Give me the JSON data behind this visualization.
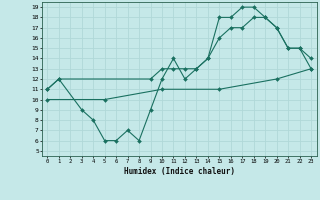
{
  "xlabel": "Humidex (Indice chaleur)",
  "xlim": [
    -0.5,
    23.5
  ],
  "ylim": [
    4.5,
    19.5
  ],
  "yticks": [
    5,
    6,
    7,
    8,
    9,
    10,
    11,
    12,
    13,
    14,
    15,
    16,
    17,
    18,
    19
  ],
  "xticks": [
    0,
    1,
    2,
    3,
    4,
    5,
    6,
    7,
    8,
    9,
    10,
    11,
    12,
    13,
    14,
    15,
    16,
    17,
    18,
    19,
    20,
    21,
    22,
    23
  ],
  "line_color": "#1a7060",
  "bg_color": "#c5e8e8",
  "grid_color": "#b0d8d8",
  "line1_x": [
    0,
    1,
    3,
    4,
    5,
    6,
    7,
    8,
    9,
    10,
    11,
    12,
    13,
    14,
    15,
    16,
    17,
    18,
    19,
    20,
    21,
    22,
    23
  ],
  "line1_y": [
    11,
    12,
    9,
    8,
    6,
    6,
    7,
    6,
    9,
    12,
    14,
    12,
    13,
    14,
    18,
    18,
    19,
    19,
    18,
    17,
    15,
    15,
    13
  ],
  "line2_x": [
    0,
    1,
    9,
    10,
    11,
    12,
    13,
    14,
    15,
    16,
    17,
    18,
    19,
    20,
    21,
    22,
    23
  ],
  "line2_y": [
    11,
    12,
    12,
    13,
    13,
    13,
    13,
    14,
    16,
    17,
    17,
    18,
    18,
    17,
    15,
    15,
    14
  ],
  "line3_x": [
    0,
    5,
    10,
    15,
    20,
    23
  ],
  "line3_y": [
    10,
    10,
    11,
    11,
    12,
    13
  ]
}
